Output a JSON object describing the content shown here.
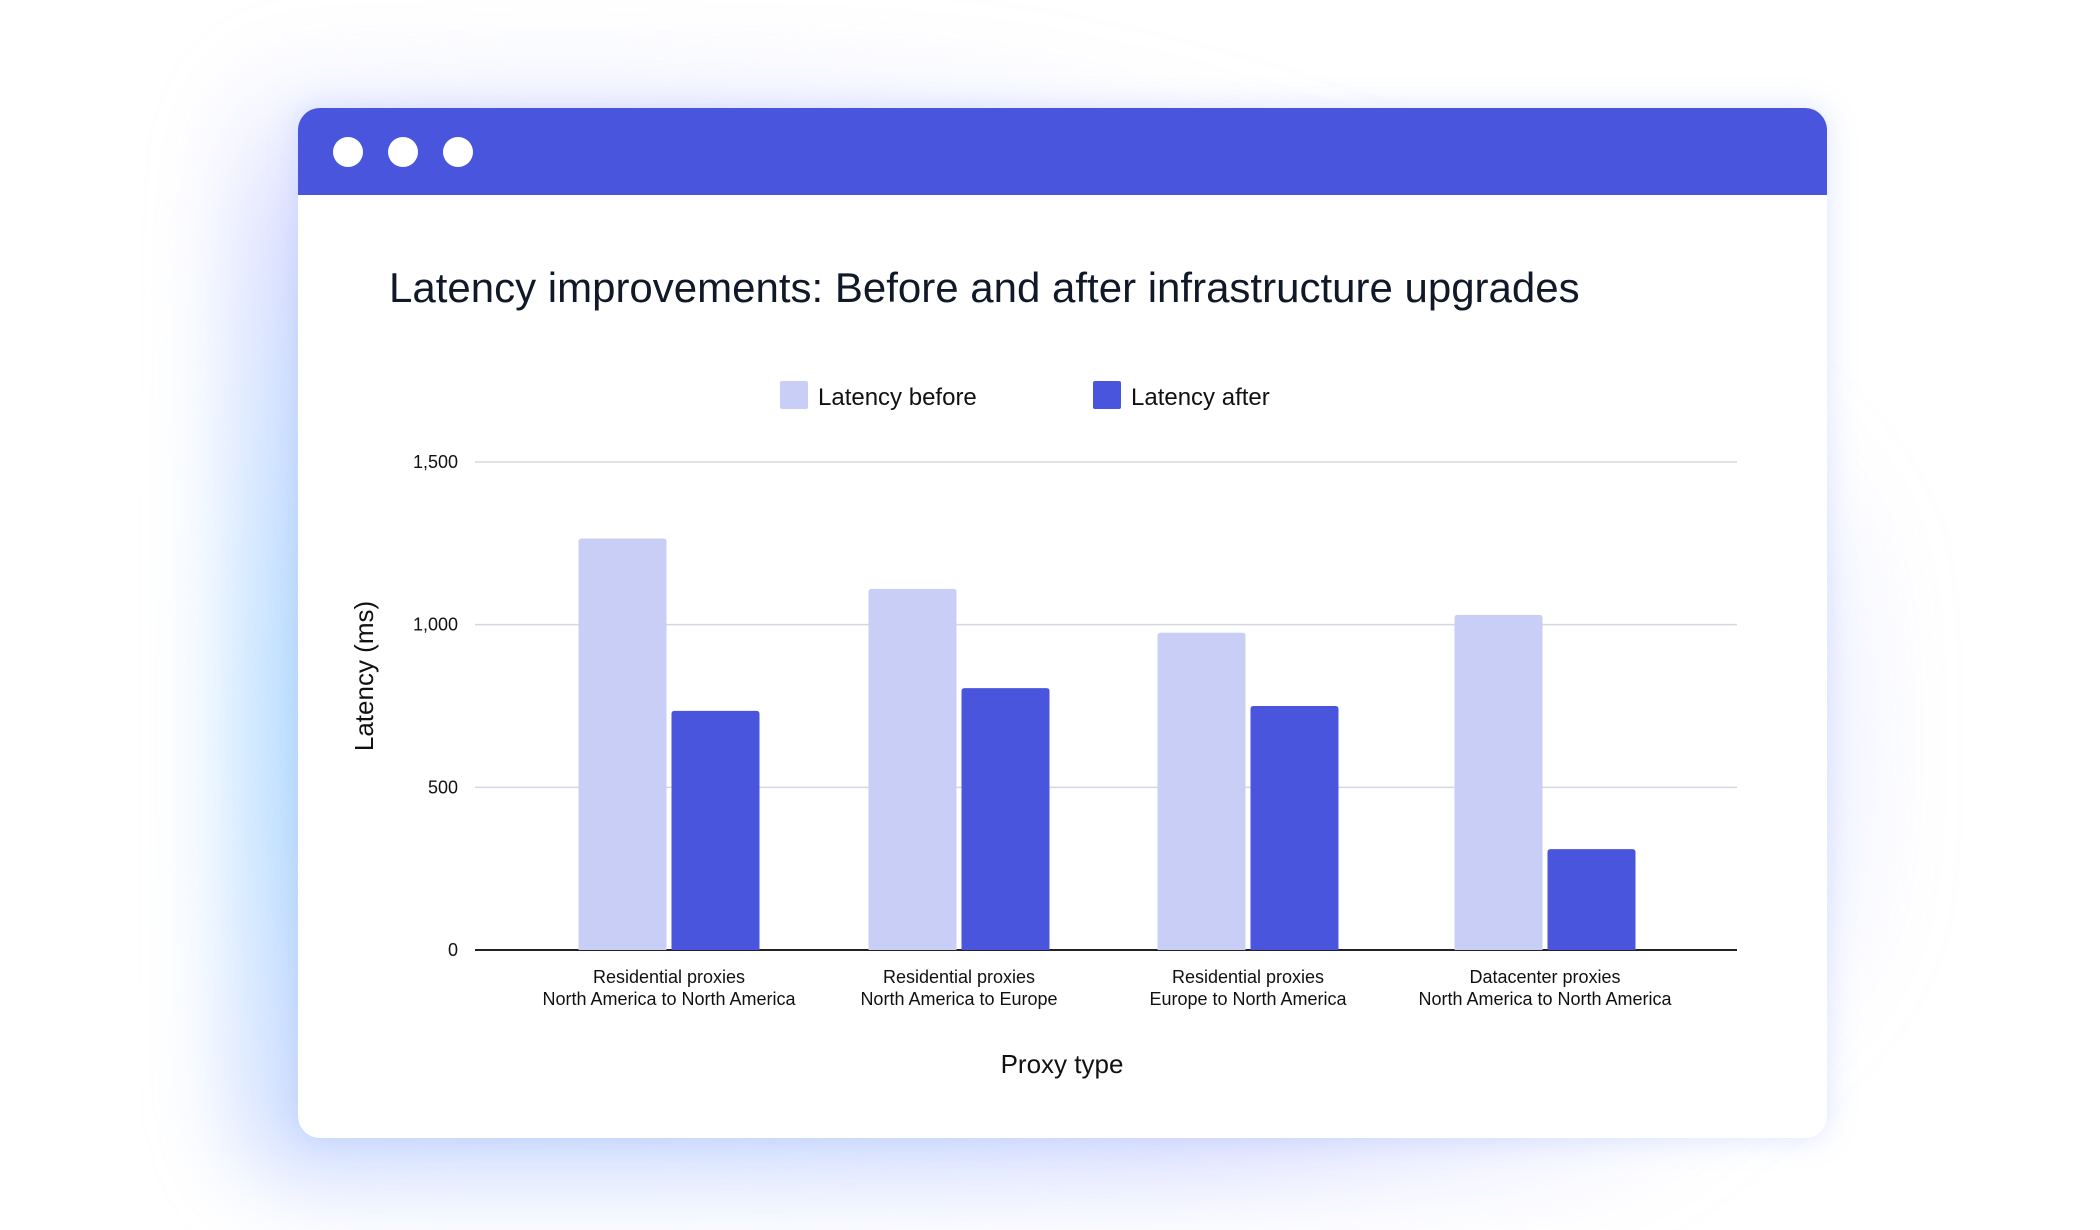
{
  "window": {
    "controls": [
      "close",
      "minimize",
      "maximize"
    ],
    "header_color": "#4955dd"
  },
  "chart_data": {
    "type": "bar",
    "title": "Latency improvements: Before and after infrastructure upgrades",
    "xlabel": "Proxy type",
    "ylabel": "Latency (ms)",
    "ylim": [
      0,
      1500
    ],
    "yticks": [
      "0",
      "500",
      "1,000",
      "1,500"
    ],
    "grid": true,
    "legend_position": "top",
    "categories": [
      [
        "Residential proxies",
        "North America to North America"
      ],
      [
        "Residential proxies",
        "North America to Europe"
      ],
      [
        "Residential proxies",
        "Europe to North America"
      ],
      [
        "Datacenter proxies",
        "North America to North America"
      ]
    ],
    "series": [
      {
        "name": "Latency before",
        "color": "#c8cef5",
        "values": [
          1265,
          1110,
          975,
          1030
        ]
      },
      {
        "name": "Latency after",
        "color": "#4955dd",
        "values": [
          735,
          805,
          750,
          310
        ]
      }
    ]
  }
}
